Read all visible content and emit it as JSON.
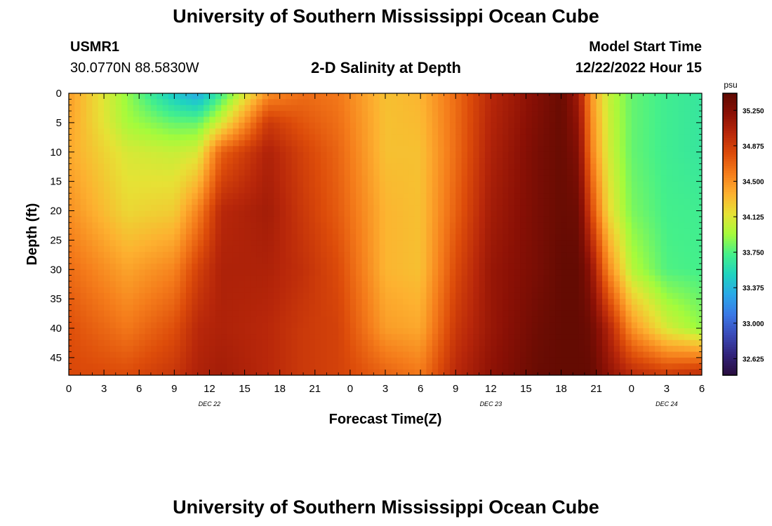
{
  "header": {
    "title": "University of Southern Mississippi Ocean Cube",
    "station": "USMR1",
    "coords": "30.0770N  88.5830W",
    "chart_title": "2-D Salinity at Depth",
    "model_start_label": "Model Start Time",
    "model_start_value": "12/22/2022 Hour 15"
  },
  "footer": {
    "title": "University of Southern Mississippi Ocean Cube"
  },
  "chart_data": {
    "type": "heatmap",
    "title": "2-D Salinity at Depth",
    "xlabel": "Forecast Time(Z)",
    "ylabel": "Depth (ft)",
    "xlim_hours": [
      0,
      54
    ],
    "ylim_ft": [
      0,
      48
    ],
    "x_tick_labels": [
      "0",
      "3",
      "6",
      "9",
      "12",
      "15",
      "18",
      "21",
      "0",
      "3",
      "6",
      "9",
      "12",
      "15",
      "18",
      "21",
      "0",
      "3",
      "6"
    ],
    "day_labels": [
      {
        "label": "DEC 22",
        "hour": 12
      },
      {
        "label": "DEC 23",
        "hour": 36
      },
      {
        "label": "DEC 24",
        "hour": 51
      }
    ],
    "y_ticks": [
      0,
      5,
      10,
      15,
      20,
      25,
      30,
      35,
      40,
      45
    ],
    "colorbar": {
      "unit": "psu",
      "ticks": [
        "32.625",
        "33.000",
        "33.375",
        "33.750",
        "34.125",
        "34.500",
        "34.875",
        "35.250"
      ],
      "min": 32.45,
      "max": 35.43,
      "colors": [
        "#2a0d3e",
        "#32237a",
        "#3a4ab8",
        "#3b78e6",
        "#2aa8e8",
        "#1fd3c0",
        "#45f08a",
        "#a5fb3b",
        "#e6e235",
        "#fdb130",
        "#f57d1b",
        "#dd4c0a",
        "#b8270a",
        "#8a1005",
        "#5e0a02"
      ]
    },
    "series": [
      {
        "hour": 0,
        "depth_ft": [
          0,
          10,
          20,
          30,
          40,
          48
        ],
        "salinity": [
          34.45,
          34.4,
          34.5,
          34.65,
          34.78,
          34.82
        ]
      },
      {
        "hour": 5,
        "depth_ft": [
          0,
          5,
          10,
          20,
          30,
          40,
          48
        ],
        "salinity": [
          33.9,
          33.95,
          34.1,
          34.2,
          34.42,
          34.6,
          34.8
        ]
      },
      {
        "hour": 9,
        "depth_ft": [
          0,
          5,
          10,
          20,
          30,
          40,
          48
        ],
        "salinity": [
          33.45,
          33.8,
          34.05,
          34.25,
          34.55,
          34.78,
          34.92
        ]
      },
      {
        "hour": 11,
        "depth_ft": [
          0,
          5,
          10,
          20,
          30,
          40,
          48
        ],
        "salinity": [
          33.3,
          33.8,
          34.1,
          34.55,
          34.85,
          35.0,
          35.05
        ]
      },
      {
        "hour": 13,
        "depth_ft": [
          0,
          5,
          10,
          20,
          30,
          40,
          48
        ],
        "salinity": [
          33.7,
          34.1,
          34.7,
          35.0,
          35.05,
          35.05,
          35.1
        ]
      },
      {
        "hour": 17,
        "depth_ft": [
          0,
          5,
          10,
          20,
          30,
          40,
          48
        ],
        "salinity": [
          34.5,
          34.9,
          35.05,
          35.1,
          35.05,
          35.0,
          35.0
        ]
      },
      {
        "hour": 20,
        "depth_ft": [
          0,
          10,
          20,
          30,
          40,
          48
        ],
        "salinity": [
          34.65,
          34.85,
          34.9,
          34.95,
          34.9,
          34.9
        ]
      },
      {
        "hour": 23,
        "depth_ft": [
          0,
          10,
          20,
          30,
          40,
          48
        ],
        "salinity": [
          34.6,
          34.68,
          34.72,
          34.8,
          34.85,
          34.85
        ]
      },
      {
        "hour": 27,
        "depth_ft": [
          0,
          10,
          20,
          30,
          40,
          48
        ],
        "salinity": [
          34.3,
          34.3,
          34.35,
          34.35,
          34.45,
          34.7
        ]
      },
      {
        "hour": 30,
        "depth_ft": [
          0,
          10,
          20,
          30,
          40,
          48
        ],
        "salinity": [
          34.35,
          34.3,
          34.3,
          34.3,
          34.4,
          34.6
        ]
      },
      {
        "hour": 33,
        "depth_ft": [
          0,
          10,
          20,
          30,
          40,
          48
        ],
        "salinity": [
          34.65,
          34.65,
          34.7,
          34.8,
          34.9,
          35.0
        ]
      },
      {
        "hour": 36,
        "depth_ft": [
          0,
          10,
          20,
          30,
          40,
          48
        ],
        "salinity": [
          35.0,
          35.05,
          35.1,
          35.15,
          35.15,
          35.2
        ]
      },
      {
        "hour": 40,
        "depth_ft": [
          0,
          10,
          20,
          30,
          40,
          48
        ],
        "salinity": [
          35.25,
          35.3,
          35.3,
          35.3,
          35.35,
          35.38
        ]
      },
      {
        "hour": 42,
        "depth_ft": [
          0,
          10,
          20,
          30,
          40,
          48
        ],
        "salinity": [
          35.38,
          35.38,
          35.38,
          35.4,
          35.4,
          35.4
        ]
      },
      {
        "hour": 43.5,
        "depth_ft": [
          0,
          10,
          20,
          30,
          40,
          48
        ],
        "salinity": [
          35.1,
          35.25,
          35.35,
          35.4,
          35.4,
          35.4
        ]
      },
      {
        "hour": 44.5,
        "depth_ft": [
          0,
          10,
          20,
          30,
          40,
          48
        ],
        "salinity": [
          34.5,
          34.6,
          34.85,
          35.2,
          35.35,
          35.4
        ]
      },
      {
        "hour": 46,
        "depth_ft": [
          0,
          10,
          20,
          30,
          40,
          48
        ],
        "salinity": [
          34.05,
          34.1,
          34.2,
          34.55,
          35.05,
          35.2
        ]
      },
      {
        "hour": 48,
        "depth_ft": [
          0,
          10,
          20,
          30,
          40,
          48
        ],
        "salinity": [
          33.8,
          33.8,
          33.85,
          34.0,
          34.5,
          35.0
        ]
      },
      {
        "hour": 51,
        "depth_ft": [
          0,
          10,
          20,
          30,
          40,
          48
        ],
        "salinity": [
          33.7,
          33.7,
          33.72,
          33.75,
          34.1,
          34.9
        ]
      },
      {
        "hour": 54,
        "depth_ft": [
          0,
          10,
          20,
          30,
          40,
          48
        ],
        "salinity": [
          33.65,
          33.65,
          33.7,
          33.72,
          33.9,
          35.0
        ]
      }
    ]
  }
}
